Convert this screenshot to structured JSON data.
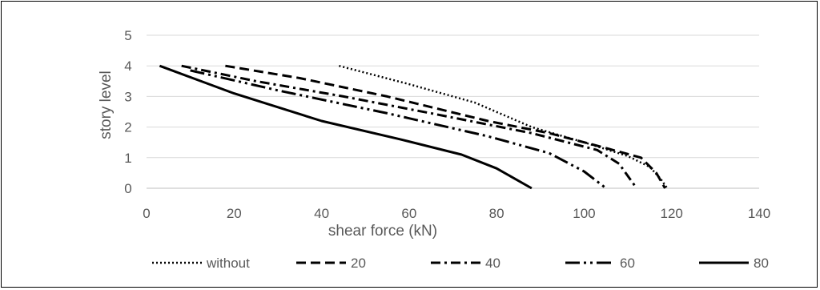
{
  "chart_data": {
    "type": "line",
    "title": "",
    "xlabel": "shear force (kN)",
    "ylabel": "story level",
    "xlim": [
      0,
      140
    ],
    "ylim": [
      0,
      5
    ],
    "xticks": [
      0,
      20,
      40,
      60,
      80,
      100,
      120,
      140
    ],
    "yticks": [
      0,
      1,
      2,
      3,
      4,
      5
    ],
    "grid": "horizontal",
    "legend": "bottom",
    "series": [
      {
        "name": "without",
        "dash": "dotted",
        "color": "#000000",
        "points": [
          [
            44,
            4.0
          ],
          [
            60,
            3.4
          ],
          [
            75,
            2.8
          ],
          [
            88,
            2.0
          ],
          [
            100,
            1.5
          ],
          [
            110,
            1.05
          ],
          [
            115,
            0.7
          ],
          [
            117.5,
            0.3
          ],
          [
            119,
            0.0
          ]
        ]
      },
      {
        "name": "20",
        "dash": "dashed",
        "color": "#000000",
        "points": [
          [
            18,
            4.0
          ],
          [
            35,
            3.6
          ],
          [
            55,
            3.0
          ],
          [
            78,
            2.2
          ],
          [
            92,
            1.8
          ],
          [
            104,
            1.35
          ],
          [
            113,
            1.0
          ],
          [
            116.5,
            0.5
          ],
          [
            118.5,
            0.0
          ]
        ]
      },
      {
        "name": "40",
        "dash": "dash-dot",
        "color": "#000000",
        "points": [
          [
            8,
            4.0
          ],
          [
            25,
            3.5
          ],
          [
            45,
            3.0
          ],
          [
            65,
            2.45
          ],
          [
            88,
            1.8
          ],
          [
            103,
            1.25
          ],
          [
            108,
            0.8
          ],
          [
            112,
            0.0
          ]
        ]
      },
      {
        "name": "60",
        "dash": "dash-dot-dot",
        "color": "#000000",
        "points": [
          [
            10,
            3.85
          ],
          [
            30,
            3.2
          ],
          [
            55,
            2.45
          ],
          [
            78,
            1.7
          ],
          [
            92,
            1.15
          ],
          [
            100,
            0.55
          ],
          [
            105,
            0.0
          ]
        ]
      },
      {
        "name": "80",
        "dash": "solid",
        "color": "#000000",
        "points": [
          [
            3,
            4.0
          ],
          [
            20,
            3.1
          ],
          [
            40,
            2.2
          ],
          [
            58,
            1.6
          ],
          [
            72,
            1.1
          ],
          [
            80,
            0.65
          ],
          [
            88,
            0.0
          ]
        ]
      }
    ]
  }
}
